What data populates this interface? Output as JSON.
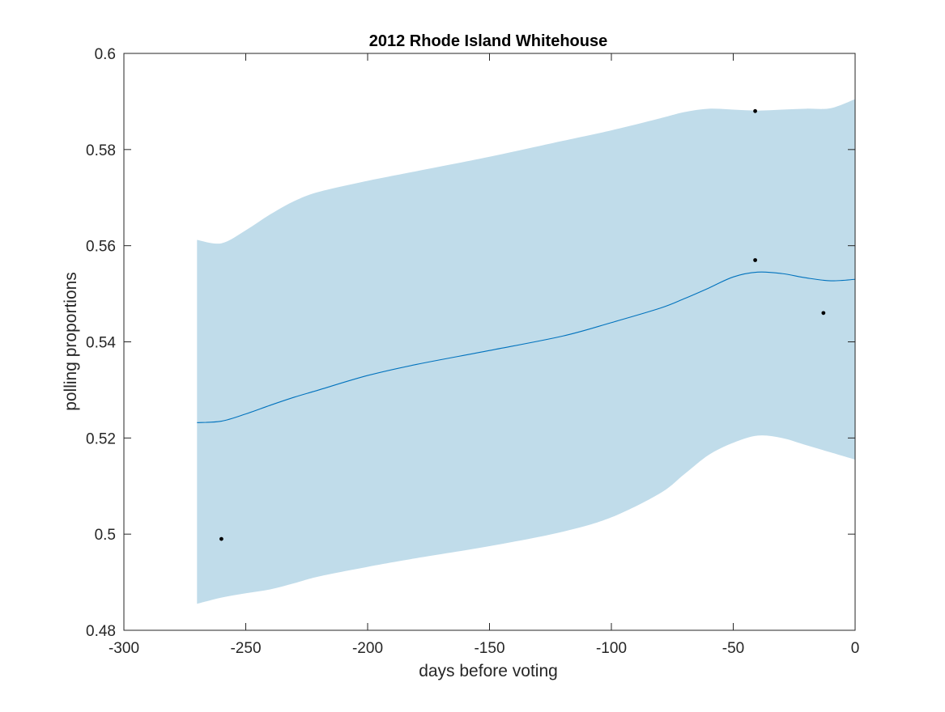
{
  "chart_data": {
    "type": "line",
    "title": "2012 Rhode Island Whitehouse",
    "xlabel": "days before voting",
    "ylabel": "polling proportions",
    "xlim": [
      -300,
      0
    ],
    "ylim": [
      0.48,
      0.6
    ],
    "x_ticks": [
      -300,
      -250,
      -200,
      -150,
      -100,
      -50,
      0
    ],
    "x_tick_labels": [
      "-300",
      "-250",
      "-200",
      "-150",
      "-100",
      "-50",
      "0"
    ],
    "y_ticks": [
      0.48,
      0.5,
      0.52,
      0.54,
      0.56,
      0.58,
      0.6
    ],
    "y_tick_labels": [
      "0.48",
      "0.5",
      "0.52",
      "0.54",
      "0.56",
      "0.58",
      "0.6"
    ],
    "grid": false,
    "colors": {
      "band": "#c0dcea",
      "line": "#0072bd",
      "points": "#000000",
      "axes": "#262626"
    },
    "band": {
      "x": [
        -270,
        -260,
        -250,
        -240,
        -230,
        -220,
        -200,
        -180,
        -150,
        -120,
        -100,
        -80,
        -70,
        -60,
        -50,
        -40,
        -30,
        -20,
        -10,
        0
      ],
      "upper": [
        0.5612,
        0.5605,
        0.5632,
        0.5665,
        0.5693,
        0.5712,
        0.5735,
        0.5755,
        0.5785,
        0.5818,
        0.584,
        0.5865,
        0.5878,
        0.5885,
        0.5883,
        0.5881,
        0.5883,
        0.5885,
        0.5886,
        0.5905
      ],
      "lower": [
        0.4855,
        0.4868,
        0.4877,
        0.4885,
        0.4898,
        0.4912,
        0.4932,
        0.495,
        0.4975,
        0.5005,
        0.5035,
        0.5085,
        0.5125,
        0.5165,
        0.519,
        0.5205,
        0.52,
        0.5185,
        0.517,
        0.5155
      ]
    },
    "mean": {
      "x": [
        -270,
        -260,
        -250,
        -240,
        -230,
        -220,
        -200,
        -180,
        -150,
        -120,
        -100,
        -80,
        -70,
        -60,
        -50,
        -40,
        -30,
        -20,
        -10,
        0
      ],
      "y": [
        0.5232,
        0.5235,
        0.525,
        0.5268,
        0.5285,
        0.53,
        0.533,
        0.5353,
        0.5382,
        0.5412,
        0.544,
        0.547,
        0.549,
        0.5512,
        0.5535,
        0.5545,
        0.5542,
        0.5533,
        0.5527,
        0.553
      ]
    },
    "points": [
      {
        "x": -260,
        "y": 0.499
      },
      {
        "x": -41,
        "y": 0.588
      },
      {
        "x": -41,
        "y": 0.557
      },
      {
        "x": -13,
        "y": 0.546
      }
    ]
  }
}
